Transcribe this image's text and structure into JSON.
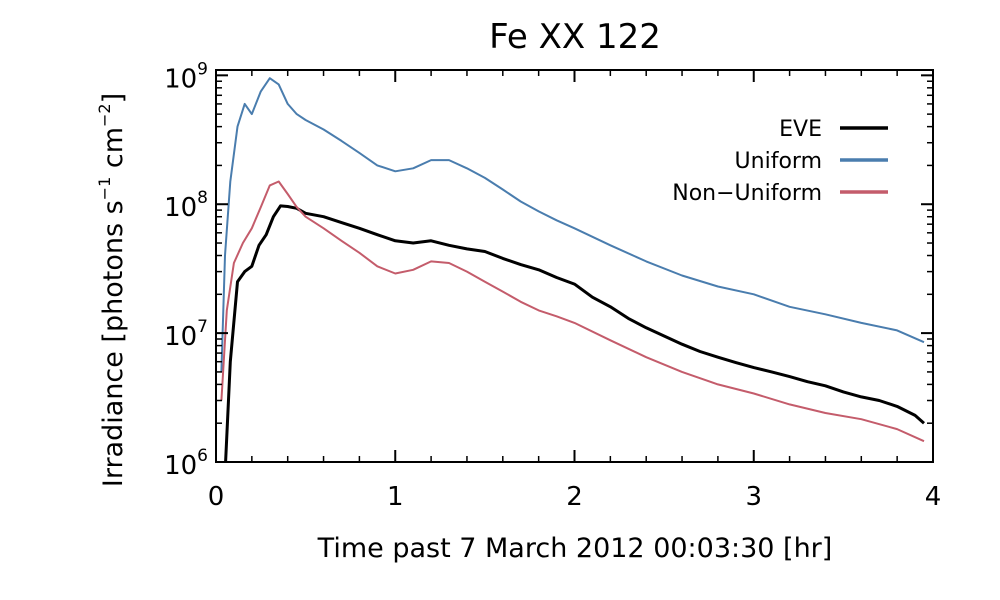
{
  "chart_data": {
    "type": "line",
    "title": "Fe XX 122",
    "xlabel": "Time past 7 March 2012 00:03:30 [hr]",
    "ylabel_main": "Irradiance [photons s",
    "ylabel_exp1": "−1",
    "ylabel_mid": " cm",
    "ylabel_exp2": "−2",
    "ylabel_end": "]",
    "xlim": [
      0,
      4
    ],
    "ylim": [
      1000000,
      1100000000
    ],
    "yscale": "log",
    "grid": false,
    "legend_position": "top-right",
    "x_ticks": [
      {
        "value": 0,
        "label": "0"
      },
      {
        "value": 1,
        "label": "1"
      },
      {
        "value": 2,
        "label": "2"
      },
      {
        "value": 3,
        "label": "3"
      },
      {
        "value": 4,
        "label": "4"
      }
    ],
    "y_ticks": [
      {
        "value": 1000000,
        "base": "10",
        "exp": "6"
      },
      {
        "value": 10000000,
        "base": "10",
        "exp": "7"
      },
      {
        "value": 100000000,
        "base": "10",
        "exp": "8"
      },
      {
        "value": 1000000000,
        "base": "10",
        "exp": "9"
      }
    ],
    "series": [
      {
        "name": "EVE",
        "color": "#000000",
        "x": [
          0.05,
          0.08,
          0.12,
          0.16,
          0.2,
          0.24,
          0.28,
          0.32,
          0.36,
          0.4,
          0.45,
          0.5,
          0.6,
          0.7,
          0.8,
          0.9,
          1.0,
          1.1,
          1.2,
          1.3,
          1.4,
          1.5,
          1.6,
          1.7,
          1.8,
          1.9,
          2.0,
          2.1,
          2.2,
          2.3,
          2.4,
          2.5,
          2.6,
          2.7,
          2.8,
          2.9,
          3.0,
          3.1,
          3.2,
          3.3,
          3.4,
          3.5,
          3.6,
          3.7,
          3.8,
          3.9,
          3.95
        ],
        "y": [
          800000,
          6000000,
          25000000,
          30000000,
          33000000,
          48000000,
          58000000,
          80000000,
          97000000,
          96000000,
          93000000,
          85000000,
          80000000,
          72000000,
          65000000,
          58000000,
          52000000,
          50000000,
          52000000,
          48000000,
          45000000,
          43000000,
          38000000,
          34000000,
          31000000,
          27000000,
          24000000,
          19000000,
          16000000,
          13000000,
          11000000,
          9500000,
          8200000,
          7200000,
          6500000,
          5900000,
          5400000,
          5000000,
          4600000,
          4200000,
          3900000,
          3500000,
          3200000,
          3000000,
          2700000,
          2300000,
          2000000
        ]
      },
      {
        "name": "Uniform",
        "color": "#4a7dae",
        "x": [
          0.03,
          0.05,
          0.08,
          0.12,
          0.16,
          0.2,
          0.25,
          0.3,
          0.35,
          0.4,
          0.45,
          0.5,
          0.6,
          0.7,
          0.8,
          0.9,
          1.0,
          1.1,
          1.2,
          1.3,
          1.4,
          1.5,
          1.6,
          1.7,
          1.8,
          1.9,
          2.0,
          2.2,
          2.4,
          2.6,
          2.8,
          3.0,
          3.2,
          3.4,
          3.6,
          3.8,
          3.95
        ],
        "y": [
          5000000,
          40000000,
          150000000,
          400000000,
          600000000,
          500000000,
          750000000,
          950000000,
          850000000,
          600000000,
          500000000,
          450000000,
          380000000,
          310000000,
          250000000,
          200000000,
          180000000,
          190000000,
          220000000,
          220000000,
          190000000,
          160000000,
          130000000,
          105000000,
          88000000,
          75000000,
          65000000,
          48000000,
          36000000,
          28000000,
          23000000,
          20000000,
          16000000,
          14000000,
          12000000,
          10500000,
          8500000
        ]
      },
      {
        "name": "Non−Uniform",
        "color": "#c45c6b",
        "x": [
          0.03,
          0.06,
          0.1,
          0.15,
          0.2,
          0.25,
          0.3,
          0.35,
          0.4,
          0.45,
          0.5,
          0.6,
          0.7,
          0.8,
          0.9,
          1.0,
          1.1,
          1.2,
          1.3,
          1.4,
          1.5,
          1.6,
          1.7,
          1.8,
          1.9,
          2.0,
          2.2,
          2.4,
          2.6,
          2.8,
          3.0,
          3.2,
          3.4,
          3.6,
          3.8,
          3.95
        ],
        "y": [
          3000000,
          15000000,
          35000000,
          50000000,
          65000000,
          95000000,
          140000000,
          150000000,
          120000000,
          95000000,
          80000000,
          65000000,
          52000000,
          42000000,
          33000000,
          29000000,
          31000000,
          36000000,
          35000000,
          30000000,
          25000000,
          21000000,
          17500000,
          15000000,
          13500000,
          12000000,
          8800000,
          6500000,
          5000000,
          4000000,
          3400000,
          2800000,
          2400000,
          2150000,
          1800000,
          1450000
        ]
      }
    ]
  }
}
